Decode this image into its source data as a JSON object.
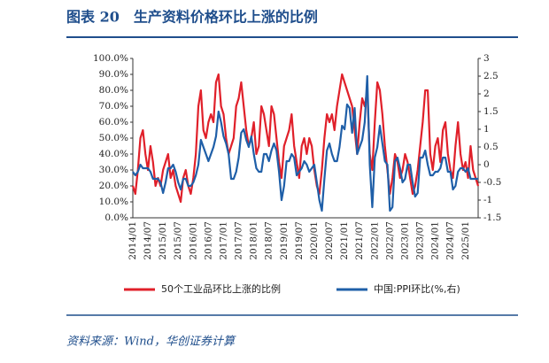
{
  "chart_data": {
    "type": "line",
    "title": "图表 20　生产资料价格环比上涨的比例",
    "source": "资料来源：Wind，华创证券计算",
    "categories": [
      "2014/01",
      null,
      null,
      null,
      null,
      null,
      "2014/07",
      null,
      null,
      null,
      null,
      null,
      "2015/01",
      null,
      null,
      null,
      null,
      null,
      "2015/07",
      null,
      null,
      null,
      null,
      null,
      "2016/01",
      null,
      null,
      null,
      null,
      null,
      "2016/07",
      null,
      null,
      null,
      null,
      null,
      "2017/01",
      null,
      null,
      null,
      null,
      null,
      "2017/07",
      null,
      null,
      null,
      null,
      null,
      "2018/01",
      null,
      null,
      null,
      null,
      null,
      "2018/07",
      null,
      null,
      null,
      null,
      null,
      "2019/01",
      null,
      null,
      null,
      null,
      null,
      "2019/07",
      null,
      null,
      null,
      null,
      null,
      "2020/01",
      null,
      null,
      null,
      null,
      null,
      "2020/07",
      null,
      null,
      null,
      null,
      null,
      "2021/01",
      null,
      null,
      null,
      null,
      null,
      "2021/07",
      null,
      null,
      null,
      null,
      null,
      "2022/01",
      null,
      null,
      null,
      null,
      null,
      "2022/07",
      null,
      null,
      null,
      null,
      null,
      "2023/01",
      null,
      null,
      null,
      null,
      null,
      "2023/07",
      null,
      null,
      null,
      null,
      null,
      "2024/01",
      null,
      null,
      null,
      null,
      null,
      "2024/07",
      null,
      null,
      null,
      null,
      null,
      "2025/01",
      null,
      null,
      null,
      null,
      null
    ],
    "series": [
      {
        "name": "50个工业品环比上涨的比例",
        "color": "#e0202a",
        "axis": "y",
        "values": [
          20,
          15,
          30,
          50,
          55,
          40,
          30,
          45,
          35,
          20,
          25,
          20,
          30,
          35,
          40,
          25,
          30,
          20,
          15,
          10,
          25,
          30,
          20,
          15,
          25,
          40,
          70,
          80,
          55,
          50,
          60,
          65,
          60,
          85,
          90,
          70,
          65,
          50,
          40,
          45,
          50,
          70,
          75,
          85,
          70,
          55,
          45,
          50,
          60,
          40,
          45,
          70,
          65,
          55,
          45,
          70,
          65,
          50,
          35,
          25,
          45,
          50,
          55,
          65,
          45,
          35,
          25,
          45,
          50,
          40,
          50,
          45,
          30,
          20,
          15,
          30,
          50,
          65,
          60,
          65,
          55,
          70,
          80,
          90,
          85,
          80,
          75,
          70,
          55,
          40,
          60,
          75,
          70,
          80,
          40,
          30,
          60,
          85,
          80,
          65,
          45,
          30,
          15,
          25,
          40,
          35,
          25,
          30,
          40,
          35,
          25,
          15,
          20,
          30,
          45,
          60,
          80,
          80,
          40,
          30,
          45,
          50,
          35,
          55,
          60,
          40,
          30,
          25,
          45,
          60,
          40,
          30,
          35,
          25,
          45,
          30,
          25,
          20
        ]
      },
      {
        "name": "中国:PPI环比(%,右)",
        "color": "#1f5fa8",
        "axis": "y2",
        "values": [
          -0.2,
          -0.3,
          -0.2,
          0,
          -0.1,
          -0.1,
          -0.1,
          -0.2,
          -0.4,
          -0.4,
          -0.4,
          -0.5,
          -0.8,
          -0.5,
          -0.1,
          -0.1,
          0,
          -0.2,
          -0.5,
          -0.7,
          -0.4,
          -0.4,
          -0.6,
          -0.6,
          -0.5,
          -0.3,
          0,
          0.7,
          0.5,
          0.3,
          0.1,
          0.3,
          0.5,
          0.8,
          1.5,
          1.2,
          0.8,
          0.6,
          0.3,
          -0.4,
          -0.4,
          -0.2,
          0.2,
          0.9,
          1.0,
          0.7,
          0.5,
          0.8,
          0.3,
          -0.1,
          -0.2,
          -0.2,
          0.3,
          0.3,
          0.1,
          0.4,
          0.6,
          0.4,
          -0.2,
          -1.0,
          -0.6,
          0.1,
          0.1,
          0.3,
          0.2,
          -0.3,
          -0.2,
          -0.1,
          0.1,
          0,
          -0.2,
          -0.1,
          0,
          -0.5,
          -1.0,
          -1.3,
          -0.4,
          0.4,
          0.6,
          0.3,
          0.1,
          0.1,
          0.5,
          1.1,
          1.0,
          1.7,
          1.6,
          0.9,
          1.6,
          0.3,
          0.5,
          0.7,
          1.2,
          2.5,
          0,
          -1.2,
          0.2,
          0.5,
          1.1,
          0.6,
          0.1,
          0,
          -1.3,
          -1.2,
          0.1,
          0.2,
          -0.1,
          -0.5,
          -0.4,
          0,
          0,
          -0.5,
          -0.9,
          -0.8,
          0.2,
          0.2,
          0.4,
          0,
          -0.3,
          -0.3,
          -0.2,
          -0.2,
          -0.1,
          0.2,
          0.2,
          -0.2,
          -0.2,
          -0.7,
          -0.6,
          -0.2,
          -0.1,
          -0.1,
          -0.2,
          -0.1,
          -0.4,
          -0.4,
          -0.4,
          -0.4
        ]
      }
    ],
    "ylim": [
      0,
      100
    ],
    "yticks": [
      {
        "value": 0,
        "label": "0.0%"
      },
      {
        "value": 10,
        "label": "10.0%"
      },
      {
        "value": 20,
        "label": "20.0%"
      },
      {
        "value": 30,
        "label": "30.0%"
      },
      {
        "value": 40,
        "label": "40.0%"
      },
      {
        "value": 50,
        "label": "50.0%"
      },
      {
        "value": 60,
        "label": "60.0%"
      },
      {
        "value": 70,
        "label": "70.0%"
      },
      {
        "value": 80,
        "label": "80.0%"
      },
      {
        "value": 90,
        "label": "90.0%"
      },
      {
        "value": 100,
        "label": "100.0%"
      }
    ],
    "y2lim": [
      -1.5,
      3
    ],
    "y2ticks": [
      -1.5,
      -1,
      -0.5,
      0,
      0.5,
      1,
      1.5,
      2,
      2.5,
      3
    ],
    "legend": "bottom"
  }
}
